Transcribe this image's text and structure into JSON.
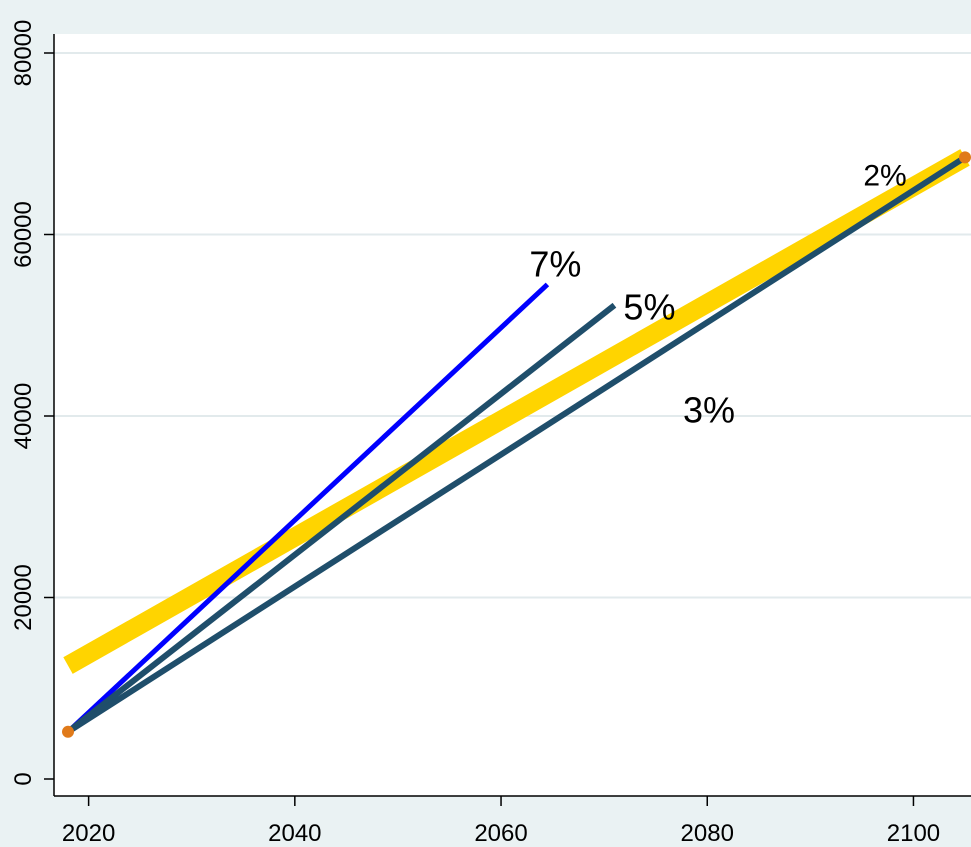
{
  "chart_data": {
    "type": "line",
    "title": "",
    "xlabel": "",
    "ylabel": "",
    "xlim": [
      2018,
      2105
    ],
    "ylim": [
      0,
      80000
    ],
    "x_ticks": [
      2020,
      2040,
      2060,
      2080,
      2100
    ],
    "y_ticks": [
      0,
      20000,
      40000,
      60000,
      80000
    ],
    "grid": "horizontal",
    "legend": "none",
    "colors": {
      "band": "#ffd400",
      "blue_line": "#0000ff",
      "dark_line": "#1f4e6b",
      "endpoint_marker": "#e07a1a",
      "plot_background": "#ffffff",
      "figure_background": "#eaf2f3",
      "gridline": "#e2eaec"
    },
    "series": [
      {
        "label": "7%",
        "x": [
          2018,
          2064.5
        ],
        "y": [
          5200,
          54500
        ],
        "style": "blue"
      },
      {
        "label": "5%",
        "x": [
          2018,
          2071
        ],
        "y": [
          5200,
          52200
        ],
        "style": "dark"
      },
      {
        "label": "3%",
        "x": [
          2018,
          2105
        ],
        "y": [
          5200,
          68500
        ],
        "style": "dark"
      },
      {
        "label": "2%",
        "x": [
          2018,
          2105
        ],
        "y": [
          12500,
          68500
        ],
        "style": "band"
      }
    ],
    "markers": [
      {
        "x": 2018,
        "y": 5200
      },
      {
        "x": 2105,
        "y": 68500
      }
    ]
  }
}
